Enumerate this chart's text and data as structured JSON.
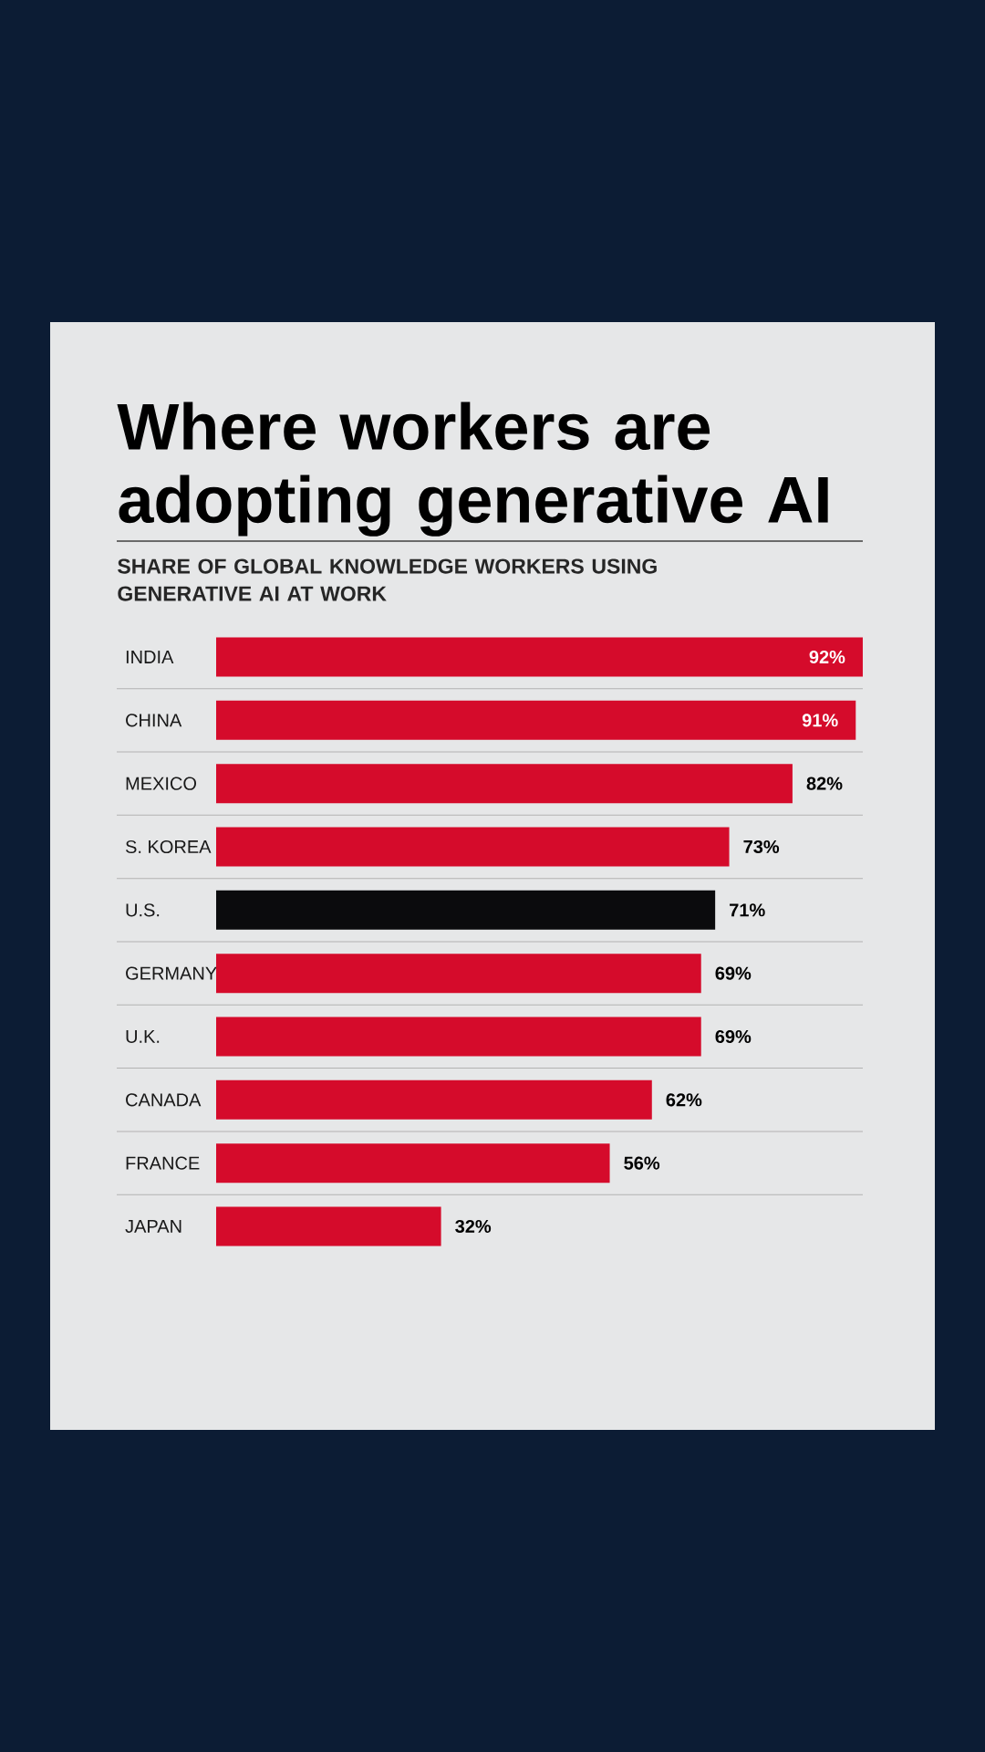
{
  "chart_data": {
    "type": "bar",
    "orientation": "horizontal",
    "title": "Where workers are adopting generative AI",
    "subtitle": "SHARE OF GLOBAL KNOWLEDGE WORKERS USING GENERATIVE AI AT WORK",
    "categories": [
      "INDIA",
      "CHINA",
      "MEXICO",
      "S. KOREA",
      "U.S.",
      "GERMANY",
      "U.K.",
      "CANADA",
      "FRANCE",
      "JAPAN"
    ],
    "values": [
      92,
      91,
      82,
      73,
      71,
      69,
      69,
      62,
      56,
      32
    ],
    "value_labels": [
      "92%",
      "91%",
      "82%",
      "73%",
      "71%",
      "69%",
      "69%",
      "62%",
      "56%",
      "32%"
    ],
    "colors": [
      "#d50b2b",
      "#d50b2b",
      "#d50b2b",
      "#d50b2b",
      "#0b0b0d",
      "#d50b2b",
      "#d50b2b",
      "#d50b2b",
      "#d50b2b",
      "#d50b2b"
    ]
  }
}
